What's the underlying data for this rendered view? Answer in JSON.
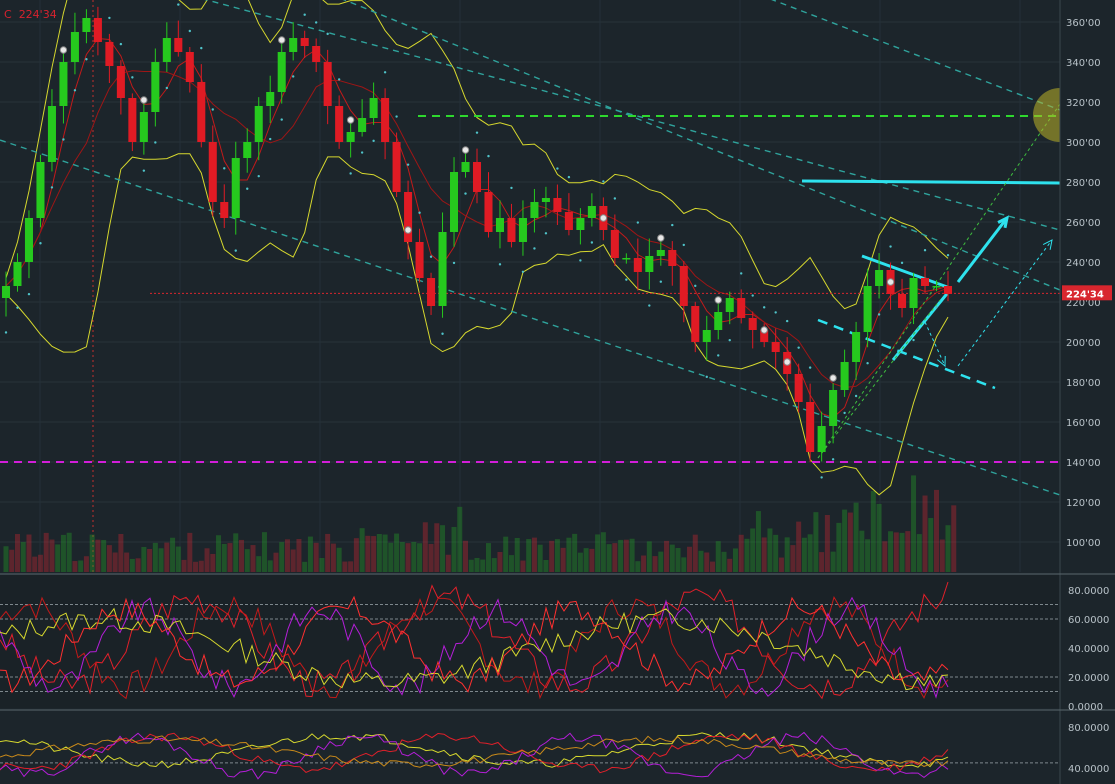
{
  "header": {
    "close_label": "C",
    "close_value": "224'34"
  },
  "colors": {
    "background": "#1c252b",
    "up_candle": "#26c91e",
    "down_candle": "#e01b24",
    "bollinger": "#d6d82e",
    "ma_red": "#c21a1a",
    "channel": "#2fa39c",
    "resistance_green": "#2ed82e",
    "target_cyan": "#2ee2ee",
    "support_magenta": "#d21ed8",
    "price_line": "#d8262e",
    "stoch_purple": "#b41ed8"
  },
  "chart_data": [
    {
      "type": "candlestick",
      "panel": "price",
      "y_axis_ticks": [
        "360'00",
        "340'00",
        "320'00",
        "300'00",
        "280'00",
        "260'00",
        "240'00",
        "220'00",
        "200'00",
        "180'00",
        "160'00",
        "140'00",
        "120'00",
        "100'00"
      ],
      "ylim": [
        90,
        370
      ],
      "last_price": 224.34,
      "last_price_label": "224'34",
      "close_series": [
        228,
        240,
        262,
        290,
        318,
        340,
        355,
        362,
        350,
        338,
        322,
        300,
        315,
        340,
        352,
        345,
        330,
        300,
        270,
        262,
        292,
        300,
        318,
        325,
        345,
        352,
        348,
        340,
        318,
        300,
        305,
        312,
        322,
        300,
        275,
        250,
        232,
        218,
        255,
        285,
        290,
        275,
        255,
        262,
        250,
        262,
        270,
        272,
        265,
        256,
        262,
        268,
        256,
        242,
        242,
        235,
        243,
        246,
        238,
        218,
        200,
        206,
        215,
        222,
        212,
        206,
        200,
        195,
        184,
        170,
        145,
        158,
        176,
        190,
        205,
        228,
        236,
        224,
        217,
        232,
        228,
        228,
        224
      ],
      "support_level": 140,
      "resistance_level": 313,
      "target_level": 280,
      "volume_axis_hidden": true
    },
    {
      "type": "line",
      "panel": "stochastic-rsi",
      "y_axis_ticks": [
        "80.0000",
        "60.0000",
        "40.0000",
        "20.0000",
        "0.0000"
      ],
      "ylim": [
        0,
        90
      ],
      "reference_levels": [
        70,
        60,
        20,
        10
      ]
    },
    {
      "type": "line",
      "panel": "oscillator",
      "y_axis_ticks": [
        "80.0000",
        "40.0000"
      ],
      "ylim": [
        20,
        100
      ],
      "reference_levels": [
        45
      ]
    }
  ]
}
